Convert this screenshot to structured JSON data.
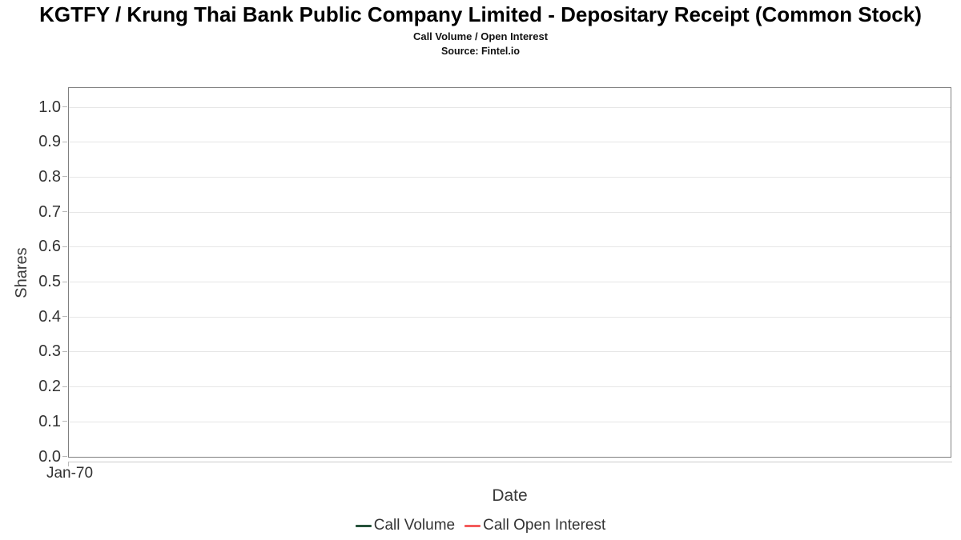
{
  "chart_data": {
    "type": "line",
    "title": "KGTFY / Krung Thai Bank Public Company Limited - Depositary Receipt (Common Stock)",
    "subtitle": "Call Volume / Open Interest",
    "source": "Source: Fintel.io",
    "xlabel": "Date",
    "ylabel": "Shares",
    "ylim": [
      0,
      1.05
    ],
    "grid": true,
    "legend_position": "bottom",
    "yticks": [
      {
        "value": 0.0,
        "label": "0.0"
      },
      {
        "value": 0.1,
        "label": "0.1"
      },
      {
        "value": 0.2,
        "label": "0.2"
      },
      {
        "value": 0.3,
        "label": "0.3"
      },
      {
        "value": 0.4,
        "label": "0.4"
      },
      {
        "value": 0.5,
        "label": "0.5"
      },
      {
        "value": 0.6,
        "label": "0.6"
      },
      {
        "value": 0.7,
        "label": "0.7"
      },
      {
        "value": 0.8,
        "label": "0.8"
      },
      {
        "value": 0.9,
        "label": "0.9"
      },
      {
        "value": 1.0,
        "label": "1.0"
      }
    ],
    "xticks": [
      "Jan-70"
    ],
    "series": [
      {
        "name": "Call Volume",
        "color": "#26523a",
        "x": [],
        "values": []
      },
      {
        "name": "Call Open Interest",
        "color": "#f45b5b",
        "x": [],
        "values": []
      }
    ]
  },
  "colors": {
    "grid": "#e6e6e6",
    "plot_border": "#808080",
    "text": "#333333"
  }
}
